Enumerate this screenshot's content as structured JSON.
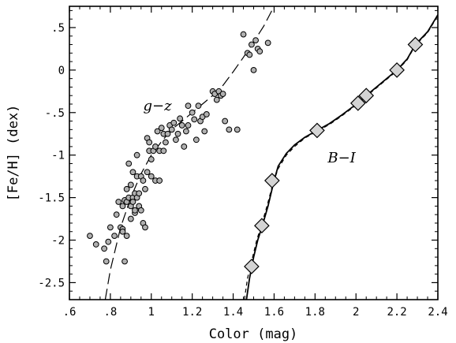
{
  "chart_data": {
    "type": "scatter",
    "xlabel": "Color (mag)",
    "ylabel": "[Fe/H] (dex)",
    "xlim": [
      0.6,
      2.4
    ],
    "ylim": [
      -2.7,
      0.75
    ],
    "xticks": [
      0.6,
      0.8,
      1.0,
      1.2,
      1.4,
      1.6,
      1.8,
      2.0,
      2.2,
      2.4
    ],
    "xtick_labels": [
      ".6",
      ".8",
      "1",
      "1.2",
      "1.4",
      "1.6",
      "1.8",
      "2",
      "2.2",
      "2.4"
    ],
    "yticks": [
      0.5,
      0,
      -0.5,
      -1,
      -1.5,
      -2,
      -2.5
    ],
    "ytick_labels": [
      ".5",
      "0",
      "-.5",
      "-1",
      "-1.5",
      "-2",
      "-2.5"
    ],
    "grid": false,
    "annotations": [
      {
        "text": "g−z",
        "x": 1.03,
        "y": -0.42
      },
      {
        "text": "B−I",
        "x": 1.93,
        "y": -1.03
      }
    ],
    "series": [
      {
        "label": "g−z",
        "marker": "circle",
        "color": "#b0b0b0",
        "points": [
          [
            0.7,
            -1.95
          ],
          [
            0.73,
            -2.05
          ],
          [
            0.77,
            -2.1
          ],
          [
            0.78,
            -2.25
          ],
          [
            0.79,
            -2.02
          ],
          [
            0.8,
            -1.85
          ],
          [
            0.82,
            -1.95
          ],
          [
            0.83,
            -1.7
          ],
          [
            0.84,
            -1.55
          ],
          [
            0.85,
            -1.85
          ],
          [
            0.86,
            -1.87
          ],
          [
            0.86,
            -1.6
          ],
          [
            0.86,
            -1.9
          ],
          [
            0.87,
            -2.25
          ],
          [
            0.87,
            -1.53
          ],
          [
            0.88,
            -1.55
          ],
          [
            0.88,
            -1.4
          ],
          [
            0.88,
            -1.95
          ],
          [
            0.89,
            -1.5
          ],
          [
            0.89,
            -1.1
          ],
          [
            0.9,
            -1.6
          ],
          [
            0.9,
            -1.35
          ],
          [
            0.9,
            -1.75
          ],
          [
            0.91,
            -1.5
          ],
          [
            0.91,
            -1.2
          ],
          [
            0.91,
            -1.55
          ],
          [
            0.92,
            -1.68
          ],
          [
            0.92,
            -1.45
          ],
          [
            0.92,
            -1.65
          ],
          [
            0.93,
            -1.25
          ],
          [
            0.93,
            -1.0
          ],
          [
            0.93,
            -1.5
          ],
          [
            0.94,
            -1.6
          ],
          [
            0.94,
            -1.45
          ],
          [
            0.95,
            -1.25
          ],
          [
            0.95,
            -1.65
          ],
          [
            0.96,
            -1.8
          ],
          [
            0.96,
            -1.3
          ],
          [
            0.97,
            -1.85
          ],
          [
            0.97,
            -1.4
          ],
          [
            0.98,
            -0.8
          ],
          [
            0.98,
            -1.2
          ],
          [
            0.99,
            -0.85
          ],
          [
            0.99,
            -0.95
          ],
          [
            1.0,
            -1.05
          ],
          [
            1.0,
            -1.25
          ],
          [
            1.01,
            -0.95
          ],
          [
            1.02,
            -1.3
          ],
          [
            1.02,
            -0.9
          ],
          [
            1.03,
            -0.72
          ],
          [
            1.04,
            -1.3
          ],
          [
            1.04,
            -0.95
          ],
          [
            1.05,
            -0.68
          ],
          [
            1.06,
            -0.75
          ],
          [
            1.06,
            -0.95
          ],
          [
            1.07,
            -0.85
          ],
          [
            1.08,
            -0.75
          ],
          [
            1.09,
            -0.65
          ],
          [
            1.1,
            -0.7
          ],
          [
            1.11,
            -0.62
          ],
          [
            1.12,
            -0.82
          ],
          [
            1.13,
            -0.75
          ],
          [
            1.14,
            -0.57
          ],
          [
            1.15,
            -0.65
          ],
          [
            1.16,
            -0.9
          ],
          [
            1.17,
            -0.72
          ],
          [
            1.18,
            -0.42
          ],
          [
            1.18,
            -0.65
          ],
          [
            1.2,
            -0.5
          ],
          [
            1.21,
            -0.58
          ],
          [
            1.22,
            -0.82
          ],
          [
            1.23,
            -0.42
          ],
          [
            1.24,
            -0.6
          ],
          [
            1.25,
            -0.55
          ],
          [
            1.26,
            -0.72
          ],
          [
            1.27,
            -0.52
          ],
          [
            1.3,
            -0.25
          ],
          [
            1.31,
            -0.28
          ],
          [
            1.32,
            -0.35
          ],
          [
            1.33,
            -0.25
          ],
          [
            1.34,
            -0.3
          ],
          [
            1.35,
            -0.28
          ],
          [
            1.36,
            -0.6
          ],
          [
            1.38,
            -0.7
          ],
          [
            1.42,
            -0.7
          ],
          [
            1.45,
            0.42
          ],
          [
            1.47,
            0.2
          ],
          [
            1.48,
            0.18
          ],
          [
            1.49,
            0.3
          ],
          [
            1.5,
            0.0
          ],
          [
            1.51,
            0.35
          ],
          [
            1.52,
            0.25
          ],
          [
            1.53,
            0.22
          ],
          [
            1.57,
            0.32
          ]
        ]
      },
      {
        "label": "B−I",
        "marker": "diamond",
        "color": "#d4d4d4",
        "points": [
          [
            1.49,
            -2.31
          ],
          [
            1.54,
            -1.83
          ],
          [
            1.59,
            -1.3
          ],
          [
            1.81,
            -0.71
          ],
          [
            2.01,
            -0.39
          ],
          [
            2.05,
            -0.3
          ],
          [
            2.2,
            0.0
          ],
          [
            2.29,
            0.3
          ]
        ]
      }
    ],
    "fits": [
      {
        "label": "g−z fit",
        "style": "long-dash",
        "points": [
          [
            0.775,
            -2.7
          ],
          [
            0.8,
            -2.35
          ],
          [
            0.85,
            -1.85
          ],
          [
            0.9,
            -1.5
          ],
          [
            0.95,
            -1.22
          ],
          [
            1.0,
            -1.0
          ],
          [
            1.05,
            -0.84
          ],
          [
            1.1,
            -0.7
          ],
          [
            1.15,
            -0.6
          ],
          [
            1.2,
            -0.5
          ],
          [
            1.25,
            -0.4
          ],
          [
            1.3,
            -0.3
          ],
          [
            1.35,
            -0.18
          ],
          [
            1.4,
            -0.02
          ],
          [
            1.45,
            0.15
          ],
          [
            1.5,
            0.33
          ],
          [
            1.55,
            0.52
          ],
          [
            1.6,
            0.75
          ]
        ]
      },
      {
        "label": "B−I fit (solid)",
        "style": "solid",
        "points": [
          [
            1.465,
            -2.7
          ],
          [
            1.48,
            -2.45
          ],
          [
            1.5,
            -2.2
          ],
          [
            1.52,
            -2.0
          ],
          [
            1.54,
            -1.85
          ],
          [
            1.57,
            -1.6
          ],
          [
            1.6,
            -1.3
          ],
          [
            1.62,
            -1.13
          ],
          [
            1.66,
            -0.98
          ],
          [
            1.7,
            -0.88
          ],
          [
            1.75,
            -0.79
          ],
          [
            1.81,
            -0.71
          ],
          [
            1.87,
            -0.63
          ],
          [
            1.93,
            -0.53
          ],
          [
            1.98,
            -0.44
          ],
          [
            2.01,
            -0.39
          ],
          [
            2.05,
            -0.3
          ],
          [
            2.1,
            -0.2
          ],
          [
            2.15,
            -0.1
          ],
          [
            2.2,
            0.0
          ],
          [
            2.25,
            0.13
          ],
          [
            2.29,
            0.3
          ],
          [
            2.35,
            0.45
          ],
          [
            2.4,
            0.65
          ]
        ]
      },
      {
        "label": "B−I fit (dashed)",
        "style": "short-dash",
        "points": [
          [
            1.455,
            -2.7
          ],
          [
            1.47,
            -2.45
          ],
          [
            1.495,
            -2.2
          ],
          [
            1.515,
            -2.0
          ],
          [
            1.535,
            -1.85
          ],
          [
            1.565,
            -1.6
          ],
          [
            1.595,
            -1.33
          ],
          [
            1.62,
            -1.16
          ],
          [
            1.66,
            -1.0
          ],
          [
            1.7,
            -0.9
          ],
          [
            1.75,
            -0.8
          ],
          [
            1.81,
            -0.72
          ],
          [
            1.87,
            -0.64
          ],
          [
            1.93,
            -0.54
          ],
          [
            1.98,
            -0.45
          ],
          [
            2.01,
            -0.4
          ],
          [
            2.05,
            -0.31
          ],
          [
            2.1,
            -0.21
          ],
          [
            2.15,
            -0.11
          ],
          [
            2.2,
            -0.01
          ],
          [
            2.25,
            0.12
          ],
          [
            2.29,
            0.29
          ],
          [
            2.35,
            0.44
          ],
          [
            2.4,
            0.64
          ]
        ]
      }
    ]
  }
}
